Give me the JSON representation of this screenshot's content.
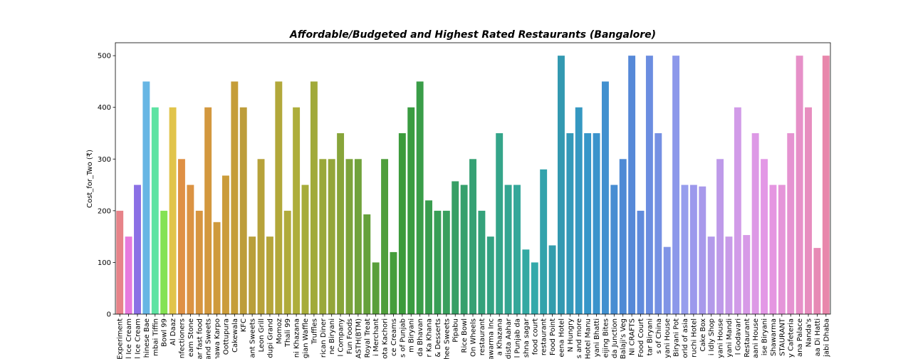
{
  "chart_data": {
    "type": "bar",
    "title": "Affordable/Budgeted and Highest Rated Restaurants (Bangalore)",
    "xlabel": "",
    "ylabel": "Cost_for_Two (₹)",
    "ylim": [
      0,
      525
    ],
    "yticks": [
      0,
      100,
      200,
      300,
      400,
      500
    ],
    "grid": false,
    "legend": "none",
    "categories": [
      "Experiment",
      "l Ice Cream",
      "l Ice Cream",
      "hinese Bae",
      "mbai Tiffin",
      "Bowl 99",
      "Al Daaz",
      "nfectioners",
      "eam Stone",
      "ar fast food",
      "and Sweets",
      "hawa Karpo",
      "Oottupura",
      "Cakewala",
      "KFC",
      "ant Sweets",
      "Leon Grill",
      "dupi Grand",
      "Momoz",
      "Thali 99",
      "ni Khazana",
      "gian Waffle",
      "Truffles",
      "rican Diner",
      "ne Biryani",
      "l Company",
      "Fun Foods",
      "ASTH(BTM)",
      "Royal Treat",
      "i Merchant",
      "ota Kachori",
      "ce Creams",
      "s of Punjab",
      "m Biryani",
      "da Bhavan",
      "r Ka Khana",
      "& Desserts",
      "hee Sweets",
      "Pipabu",
      "Rice Bowl",
      "On Wheels",
      "restaurant",
      "awarma Inc",
      "a Khazana",
      "dista Aahar",
      "l Punjab da",
      "shna sagar",
      "food court",
      "restaurant",
      "Food Point",
      "eena Hotel",
      "N Hungry",
      "s and more",
      "Hotel Manu",
      "yani Bhatti",
      "eijing Bites",
      "da Junction",
      "Balaji's Veg",
      "NI CRAFTS",
      "Food Court",
      "tar Biryani",
      "s of China",
      "yani House",
      "Biryani Pot",
      "orld of asia",
      "ruchi Hotel",
      "Cake Box",
      "i Idly Shop",
      "yani House",
      "yani Mandi",
      "l Godavari",
      "Restaurant",
      "aani House",
      "ise Biryani",
      "Shawarma",
      "STAURANT",
      "y Cafeteria",
      "ana Palace",
      "Nanda's",
      "aa Di Hatti",
      "jabi Dhaba"
    ],
    "values": [
      200,
      150,
      250,
      450,
      400,
      200,
      400,
      300,
      250,
      200,
      400,
      178,
      268,
      450,
      400,
      150,
      300,
      150,
      450,
      200,
      400,
      250,
      450,
      300,
      300,
      350,
      300,
      300,
      193,
      100,
      300,
      120,
      350,
      400,
      450,
      220,
      200,
      200,
      257,
      250,
      300,
      200,
      150,
      350,
      250,
      250,
      125,
      100,
      280,
      133,
      500,
      350,
      400,
      350,
      350,
      450,
      250,
      300,
      500,
      200,
      500,
      350,
      130,
      500,
      250,
      250,
      247,
      150,
      300,
      150,
      400,
      153,
      350,
      300,
      250,
      250,
      350,
      500,
      400,
      128,
      500
    ]
  }
}
